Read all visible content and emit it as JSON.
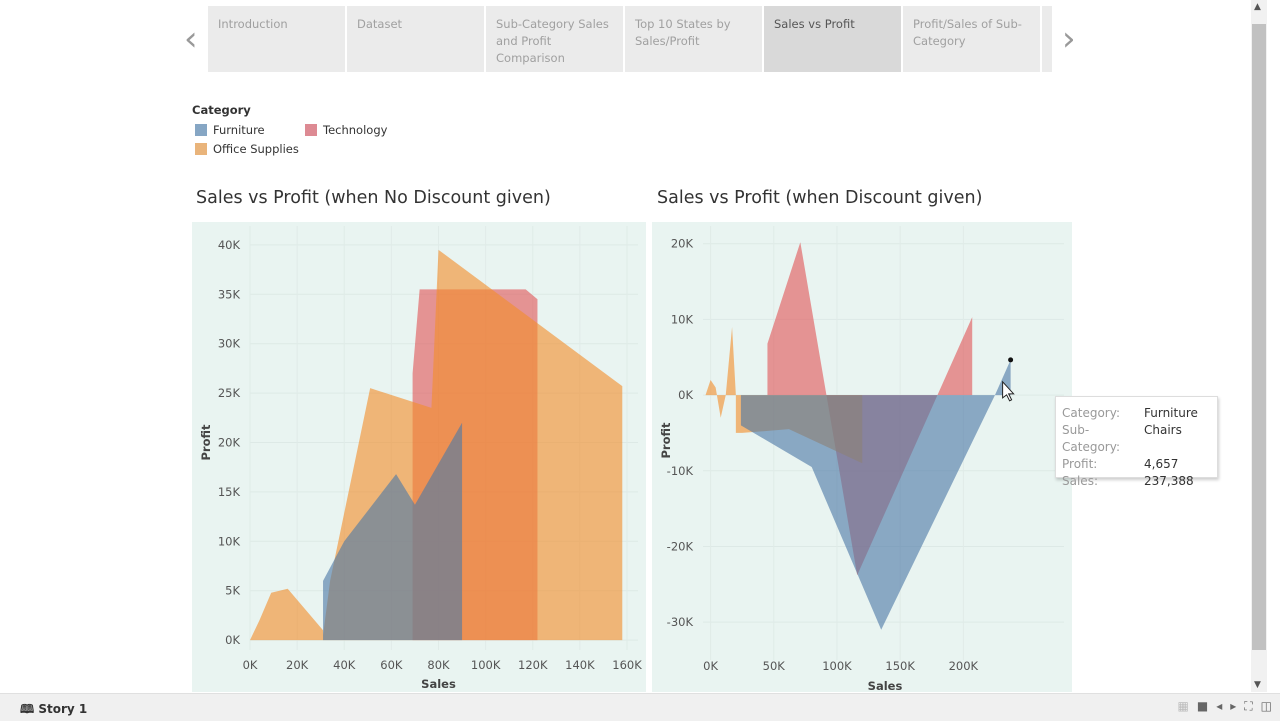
{
  "story": {
    "tabs": [
      {
        "label": "Introduction",
        "active": false
      },
      {
        "label": "Dataset",
        "active": false
      },
      {
        "label": "Sub-Category Sales and Profit Comparison",
        "active": false
      },
      {
        "label": "Top 10 States by Sales/Profit",
        "active": false
      },
      {
        "label": "Sales vs Profit",
        "active": true
      },
      {
        "label": "Profit/Sales of Sub-Category",
        "active": false
      }
    ],
    "prev_icon": "chevron-left-icon",
    "next_icon": "chevron-right-icon"
  },
  "legend": {
    "title": "Category",
    "items": [
      {
        "label": "Furniture",
        "color": "#4e79a7"
      },
      {
        "label": "Technology",
        "color": "#e15759"
      },
      {
        "label": "Office Supplies",
        "color": "#f28e2b"
      }
    ]
  },
  "chart_data": [
    {
      "type": "area",
      "title": "Sales vs Profit (when No Discount given)",
      "xlabel": "Sales",
      "ylabel": "Profit",
      "xlim": [
        0,
        160000
      ],
      "ylim": [
        -1000,
        41000
      ],
      "xticks": [
        0,
        20000,
        40000,
        60000,
        80000,
        100000,
        120000,
        140000,
        160000
      ],
      "xtick_labels": [
        "0K",
        "20K",
        "40K",
        "60K",
        "80K",
        "100K",
        "120K",
        "140K",
        "160K"
      ],
      "yticks": [
        0,
        5000,
        10000,
        15000,
        20000,
        25000,
        30000,
        35000,
        40000
      ],
      "ytick_labels": [
        "0K",
        "5K",
        "10K",
        "15K",
        "20K",
        "25K",
        "30K",
        "35K",
        "40K"
      ],
      "grid": true,
      "series": [
        {
          "name": "Technology",
          "points": [
            [
              69000,
              0
            ],
            [
              69000,
              27000
            ],
            [
              72000,
              35500
            ],
            [
              117000,
              35500
            ],
            [
              122000,
              34500
            ],
            [
              122000,
              0
            ]
          ]
        },
        {
          "name": "Office Supplies",
          "points": [
            [
              0,
              0
            ],
            [
              4000,
              2000
            ],
            [
              9000,
              4800
            ],
            [
              16000,
              5200
            ],
            [
              31000,
              1000
            ],
            [
              31000,
              500
            ],
            [
              34000,
              6000
            ],
            [
              51000,
              25500
            ],
            [
              77000,
              23500
            ],
            [
              80000,
              39500
            ],
            [
              158000,
              25700
            ],
            [
              158000,
              0
            ]
          ]
        },
        {
          "name": "Furniture",
          "points": [
            [
              31000,
              0
            ],
            [
              31000,
              6000
            ],
            [
              40000,
              10000
            ],
            [
              62000,
              16800
            ],
            [
              70000,
              13700
            ],
            [
              90000,
              22000
            ],
            [
              90000,
              0
            ]
          ]
        }
      ]
    },
    {
      "type": "area",
      "title": "Sales vs Profit (when Discount given)",
      "xlabel": "Sales",
      "ylabel": "Profit",
      "xlim": [
        -6000,
        282000
      ],
      "ylim": [
        -35000,
        23000
      ],
      "xticks": [
        0,
        50000,
        100000,
        150000,
        200000
      ],
      "xtick_labels": [
        "0K",
        "50K",
        "100K",
        "150K",
        "200K"
      ],
      "yticks": [
        -30000,
        -20000,
        -10000,
        0,
        10000,
        20000
      ],
      "ytick_labels": [
        "-30K",
        "-20K",
        "-10K",
        "0K",
        "10K",
        "20K"
      ],
      "grid": true,
      "series": [
        {
          "name": "Technology",
          "points": [
            [
              45000,
              0
            ],
            [
              45000,
              6800
            ],
            [
              71000,
              20200
            ],
            [
              116000,
              -23800
            ],
            [
              207000,
              10300
            ],
            [
              207000,
              0
            ]
          ]
        },
        {
          "name": "Office Supplies",
          "points": [
            [
              -4000,
              0
            ],
            [
              0,
              2000
            ],
            [
              4000,
              1000
            ],
            [
              8000,
              -3000
            ],
            [
              12000,
              0
            ],
            [
              17000,
              9000
            ],
            [
              20000,
              0
            ],
            [
              20000,
              -5000
            ],
            [
              25000,
              -5000
            ],
            [
              62000,
              -4500
            ],
            [
              120000,
              -9000
            ],
            [
              120000,
              0
            ]
          ]
        },
        {
          "name": "Furniture",
          "points": [
            [
              24000,
              0
            ],
            [
              24000,
              -4000
            ],
            [
              80000,
              -9500
            ],
            [
              135000,
              -31000
            ],
            [
              225000,
              0
            ],
            [
              237388,
              4657
            ],
            [
              237388,
              0
            ]
          ]
        }
      ],
      "highlight_point": [
        237388,
        4657
      ]
    }
  ],
  "tooltip": {
    "rows": [
      {
        "key": "Category:",
        "value": "Furniture"
      },
      {
        "key": "Sub-Category:",
        "value": "Chairs"
      },
      {
        "key": "Profit:",
        "value": "4,657"
      },
      {
        "key": "Sales:",
        "value": "237,388"
      }
    ]
  },
  "bottom": {
    "story_label": "Story 1",
    "story_icon": "book-icon",
    "icons": [
      "layout-icon",
      "square-icon",
      "previous-icon",
      "next-icon",
      "fullscreen-icon",
      "present-icon"
    ]
  },
  "colors": {
    "plot_bg": "#e9f4f1",
    "Furniture": "#4e79a7",
    "Technology": "#e15759",
    "Office Supplies": "#f28e2b"
  }
}
